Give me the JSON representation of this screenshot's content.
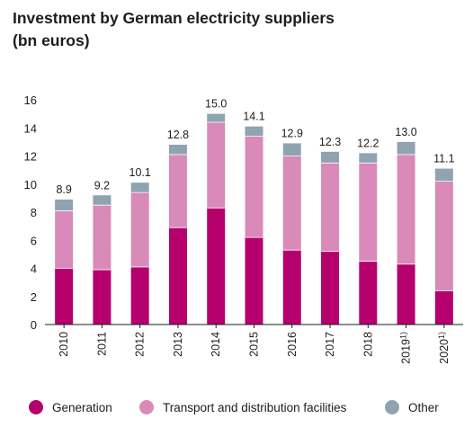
{
  "title": {
    "line1": "Investment by German electricity suppliers",
    "line2": "(bn euros)"
  },
  "chart_data": {
    "type": "bar",
    "stacked": true,
    "categories": [
      "2010",
      "2011",
      "2012",
      "2013",
      "2014",
      "2015",
      "2016",
      "2017",
      "2018",
      "2019",
      "2020"
    ],
    "category_superscripts": [
      "",
      "",
      "",
      "",
      "",
      "",
      "",
      "",
      "",
      "1)",
      "1)"
    ],
    "series": [
      {
        "name": "Generation",
        "color": "#b5006e",
        "values": [
          4.0,
          3.9,
          4.1,
          6.9,
          8.3,
          6.2,
          5.3,
          5.2,
          4.5,
          4.3,
          2.4
        ]
      },
      {
        "name": "Transport and distribution facilities",
        "color": "#d98ab8",
        "values": [
          4.1,
          4.6,
          5.3,
          5.2,
          6.1,
          7.2,
          6.7,
          6.3,
          7.0,
          7.8,
          7.8
        ]
      },
      {
        "name": "Other",
        "color": "#8fa3b0",
        "values": [
          0.8,
          0.7,
          0.7,
          0.7,
          0.6,
          0.7,
          0.9,
          0.8,
          0.7,
          0.9,
          0.9
        ]
      }
    ],
    "totals": [
      "8.9",
      "9.2",
      "10.1",
      "12.8",
      "15.0",
      "14.1",
      "12.9",
      "12.3",
      "12.2",
      "13.0",
      "11.1"
    ],
    "yticks": [
      "0",
      "2",
      "4",
      "6",
      "8",
      "10",
      "12",
      "14",
      "16"
    ],
    "ylim": [
      0,
      16
    ],
    "grid": false,
    "legend_position": "bottom"
  }
}
